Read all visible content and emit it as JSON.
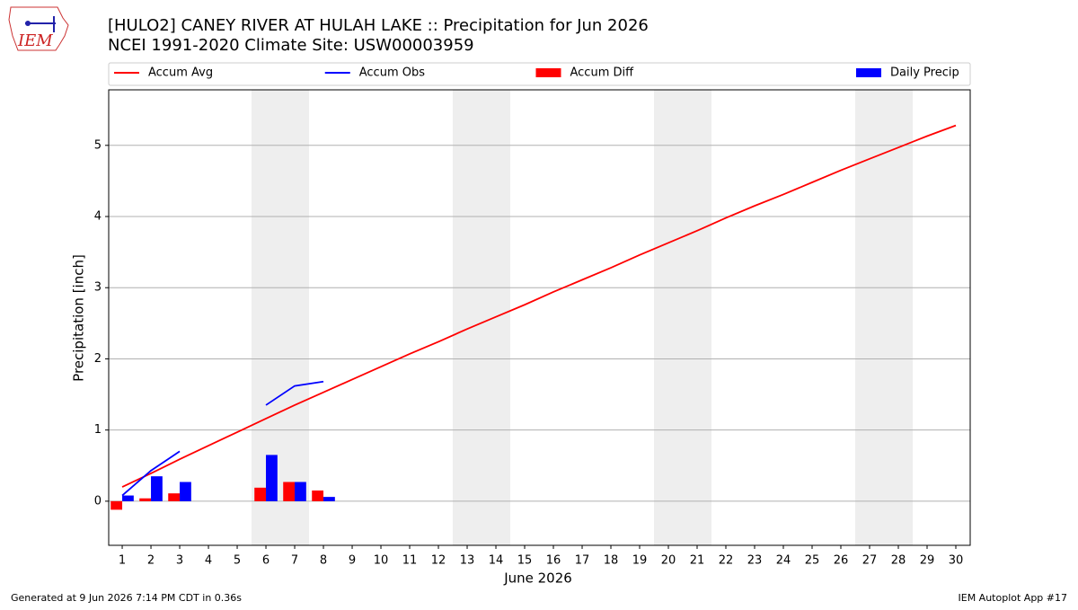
{
  "logo_text": "IEM",
  "footer_left": "Generated at 9 Jun 2026 7:14 PM CDT in 0.36s",
  "footer_right": "IEM Autoplot App #17",
  "chart_data": {
    "type": "combo",
    "title": "[HULO2] CANEY RIVER  AT HULAH LAKE :: Precipitation for Jun 2026",
    "subtitle": "NCEI 1991-2020 Climate Site: USW00003959",
    "xlabel": "June 2026",
    "ylabel": "Precipitation [inch]",
    "x": [
      1,
      2,
      3,
      4,
      5,
      6,
      7,
      8,
      9,
      10,
      11,
      12,
      13,
      14,
      15,
      16,
      17,
      18,
      19,
      20,
      21,
      22,
      23,
      24,
      25,
      26,
      27,
      28,
      29,
      30
    ],
    "series": [
      {
        "name": "Accum Avg",
        "type": "line",
        "color": "#ff0000",
        "values": [
          0.2,
          0.39,
          0.59,
          0.78,
          0.97,
          1.16,
          1.35,
          1.53,
          1.71,
          1.89,
          2.07,
          2.24,
          2.42,
          2.59,
          2.76,
          2.94,
          3.11,
          3.28,
          3.46,
          3.63,
          3.8,
          3.98,
          4.15,
          4.31,
          4.48,
          4.65,
          4.81,
          4.97,
          5.13,
          5.28
        ]
      },
      {
        "name": "Accum Obs",
        "type": "line",
        "color": "#0000ff",
        "values": [
          0.08,
          0.43,
          0.7,
          null,
          null,
          1.35,
          1.62,
          1.68,
          null,
          null,
          null,
          null,
          null,
          null,
          null,
          null,
          null,
          null,
          null,
          null,
          null,
          null,
          null,
          null,
          null,
          null,
          null,
          null,
          null,
          null
        ]
      },
      {
        "name": "Accum Diff",
        "type": "bar",
        "color": "#ff0000",
        "values": [
          -0.12,
          0.04,
          0.11,
          null,
          null,
          0.19,
          0.27,
          0.15,
          null,
          null,
          null,
          null,
          null,
          null,
          null,
          null,
          null,
          null,
          null,
          null,
          null,
          null,
          null,
          null,
          null,
          null,
          null,
          null,
          null,
          null
        ]
      },
      {
        "name": "Daily Precip",
        "type": "bar",
        "color": "#0000ff",
        "values": [
          0.08,
          0.35,
          0.27,
          null,
          null,
          0.65,
          0.27,
          0.06,
          null,
          null,
          null,
          null,
          null,
          null,
          null,
          null,
          null,
          null,
          null,
          null,
          null,
          null,
          null,
          null,
          null,
          null,
          null,
          null,
          null,
          null
        ]
      }
    ],
    "highlight_spans": [
      [
        5.5,
        7.5
      ],
      [
        12.5,
        14.5
      ],
      [
        19.5,
        21.5
      ],
      [
        26.5,
        28.5
      ]
    ],
    "xlim": [
      0.53,
      30.5
    ],
    "ylim": [
      -0.62,
      5.78
    ],
    "xticks": [
      1,
      2,
      3,
      4,
      5,
      6,
      7,
      8,
      9,
      10,
      11,
      12,
      13,
      14,
      15,
      16,
      17,
      18,
      19,
      20,
      21,
      22,
      23,
      24,
      25,
      26,
      27,
      28,
      29,
      30
    ],
    "yticks": [
      0,
      1,
      2,
      3,
      4,
      5
    ],
    "grid": true
  }
}
